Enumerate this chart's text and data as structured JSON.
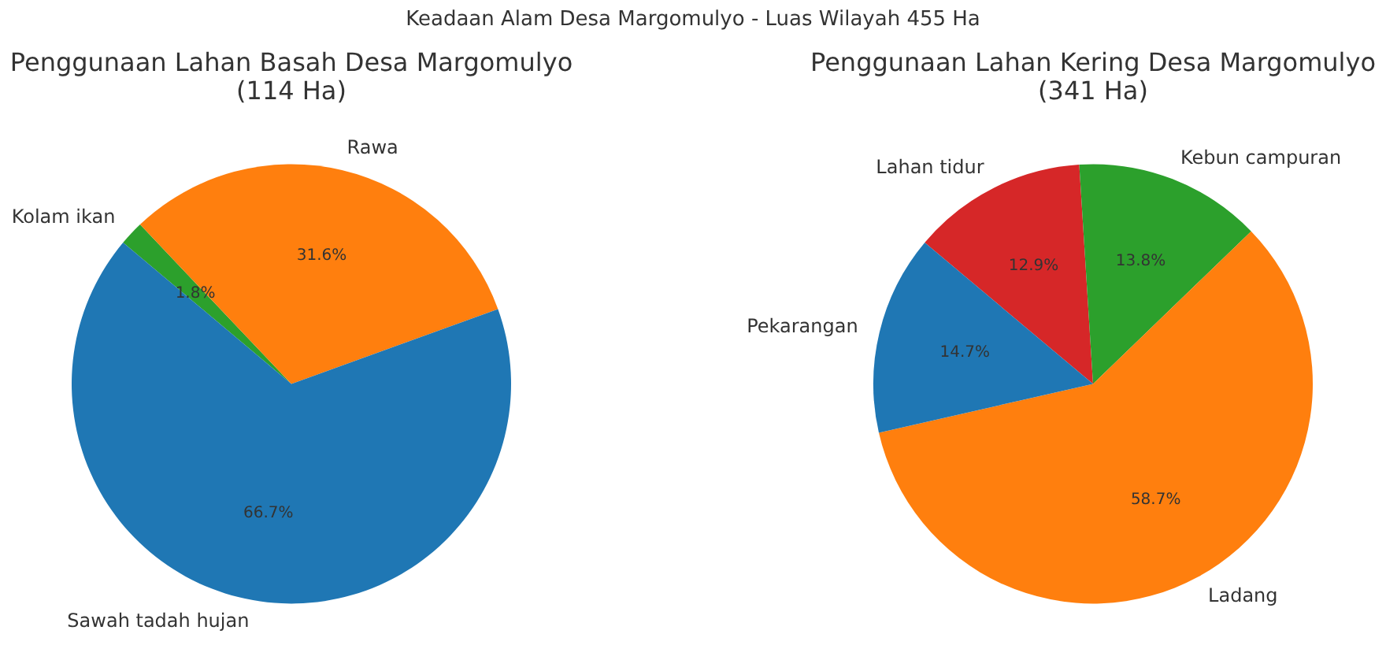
{
  "chart_data": [
    {
      "type": "pie",
      "title": "Penggunaan Lahan Basah Desa Margomulyo\n(114 Ha)",
      "annotations": [
        "Keadaan Alam Desa Margomulyo - Luas Wilayah 455 Ha"
      ],
      "categories": [
        "Sawah tadah hujan",
        "Rawa",
        "Kolam ikan"
      ],
      "values": [
        66.7,
        31.6,
        1.8
      ],
      "colors": [
        "#1f77b4",
        "#ff7f0e",
        "#2ca02c"
      ],
      "value_labels": [
        "66.7%",
        "31.6%",
        "1.8%"
      ]
    },
    {
      "type": "pie",
      "title": "Penggunaan Lahan Kering Desa Margomulyo\n(341 Ha)",
      "categories": [
        "Pekarangan",
        "Ladang",
        "Kebun campuran",
        "Lahan tidur"
      ],
      "values": [
        14.7,
        58.7,
        13.8,
        12.9
      ],
      "colors": [
        "#1f77b4",
        "#ff7f0e",
        "#2ca02c",
        "#d62728"
      ],
      "value_labels": [
        "14.7%",
        "58.7%",
        "13.8%",
        "12.9%"
      ]
    }
  ]
}
